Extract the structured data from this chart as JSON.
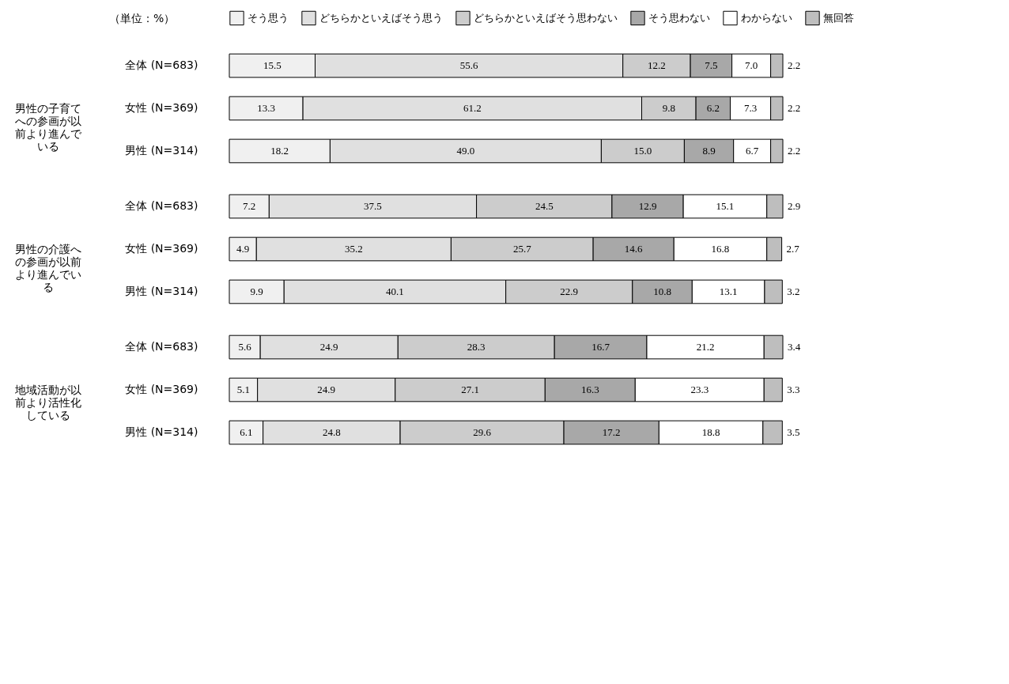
{
  "chart_data": [
    {
      "type": "bar",
      "orientation": "horizontal",
      "stacked": true,
      "title": "男性の子育てへの参画が以前より進んでいる",
      "categories": [
        "全体 (N=683)",
        "女性 (N=369)",
        "男性 (N=314)"
      ],
      "annotations": [
        "（単位：%）"
      ],
      "legend": "top",
      "tick_labels": "y",
      "series": [
        {
          "name": "そう思う",
          "color": "#f0f0f0",
          "values": [
            15.5,
            13.3,
            18.2
          ],
          "value_labels": [
            "15.5",
            "13.3",
            "18.2"
          ]
        },
        {
          "name": "どちらかといえばそう思う",
          "color": "#e0e0e0",
          "values": [
            55.6,
            61.2,
            49.0
          ],
          "value_labels": [
            "55.6",
            "61.2",
            "49.0"
          ]
        },
        {
          "name": "どちらかといえばそう思わない",
          "color": "#cccccc",
          "values": [
            12.2,
            9.8,
            15.0
          ],
          "value_labels": [
            "12.2",
            "9.8",
            "15.0"
          ]
        },
        {
          "name": "そう思わない",
          "color": "#a8a8a8",
          "values": [
            7.5,
            6.2,
            8.9
          ],
          "value_labels": [
            "7.5",
            "6.2",
            "8.9"
          ]
        },
        {
          "name": "わからない",
          "color": "#ffffff",
          "values": [
            7.0,
            7.3,
            6.7
          ],
          "value_labels": [
            "7.0",
            "7.3",
            "6.7"
          ]
        },
        {
          "name": "無回答",
          "color": "#bebebe",
          "values": [
            2.2,
            2.2,
            2.2
          ],
          "value_labels": [
            "2.2",
            "2.2",
            "2.2"
          ]
        }
      ]
    },
    {
      "type": "bar",
      "orientation": "horizontal",
      "stacked": true,
      "title": "男性の介護への参画が以前より進んでいる",
      "categories": [
        "全体 (N=683)",
        "女性 (N=369)",
        "男性 (N=314)"
      ],
      "tick_labels": "y",
      "series": [
        {
          "color": "#f0f0f0",
          "values": [
            7.2,
            4.9,
            9.9
          ],
          "value_labels": [
            "7.2",
            "4.9",
            "9.9"
          ]
        },
        {
          "color": "#e0e0e0",
          "values": [
            37.5,
            35.2,
            40.1
          ],
          "value_labels": [
            "37.5",
            "35.2",
            "40.1"
          ]
        },
        {
          "color": "#cccccc",
          "values": [
            24.5,
            25.7,
            22.9
          ],
          "value_labels": [
            "24.5",
            "25.7",
            "22.9"
          ]
        },
        {
          "color": "#a8a8a8",
          "values": [
            12.9,
            14.6,
            10.8
          ],
          "value_labels": [
            "12.9",
            "14.6",
            "10.8"
          ]
        },
        {
          "color": "#ffffff",
          "values": [
            15.1,
            16.8,
            13.1
          ],
          "value_labels": [
            "15.1",
            "16.8",
            "13.1"
          ]
        },
        {
          "color": "#bebebe",
          "values": [
            2.9,
            2.7,
            3.2
          ],
          "value_labels": [
            "2.9",
            "2.7",
            "3.2"
          ]
        }
      ]
    },
    {
      "type": "bar",
      "orientation": "horizontal",
      "stacked": true,
      "title": "地域活動が以前より活性化している",
      "categories": [
        "全体 (N=683)",
        "女性 (N=369)",
        "男性 (N=314)"
      ],
      "tick_labels": "y",
      "series": [
        {
          "color": "#f0f0f0",
          "values": [
            5.6,
            5.1,
            6.1
          ],
          "value_labels": [
            "5.6",
            "5.1",
            "6.1"
          ]
        },
        {
          "color": "#e0e0e0",
          "values": [
            24.9,
            24.9,
            24.8
          ],
          "value_labels": [
            "24.9",
            "24.9",
            "24.8"
          ]
        },
        {
          "color": "#cccccc",
          "values": [
            28.3,
            27.1,
            29.6
          ],
          "value_labels": [
            "28.3",
            "27.1",
            "29.6"
          ]
        },
        {
          "color": "#a8a8a8",
          "values": [
            16.7,
            16.3,
            17.2
          ],
          "value_labels": [
            "16.7",
            "16.3",
            "17.2"
          ]
        },
        {
          "color": "#ffffff",
          "values": [
            21.2,
            23.3,
            18.8
          ],
          "value_labels": [
            "21.2",
            "23.3",
            "18.8"
          ]
        },
        {
          "color": "#bebebe",
          "values": [
            3.4,
            3.3,
            3.5
          ],
          "value_labels": [
            "3.4",
            "3.3",
            "3.5"
          ]
        }
      ]
    }
  ]
}
